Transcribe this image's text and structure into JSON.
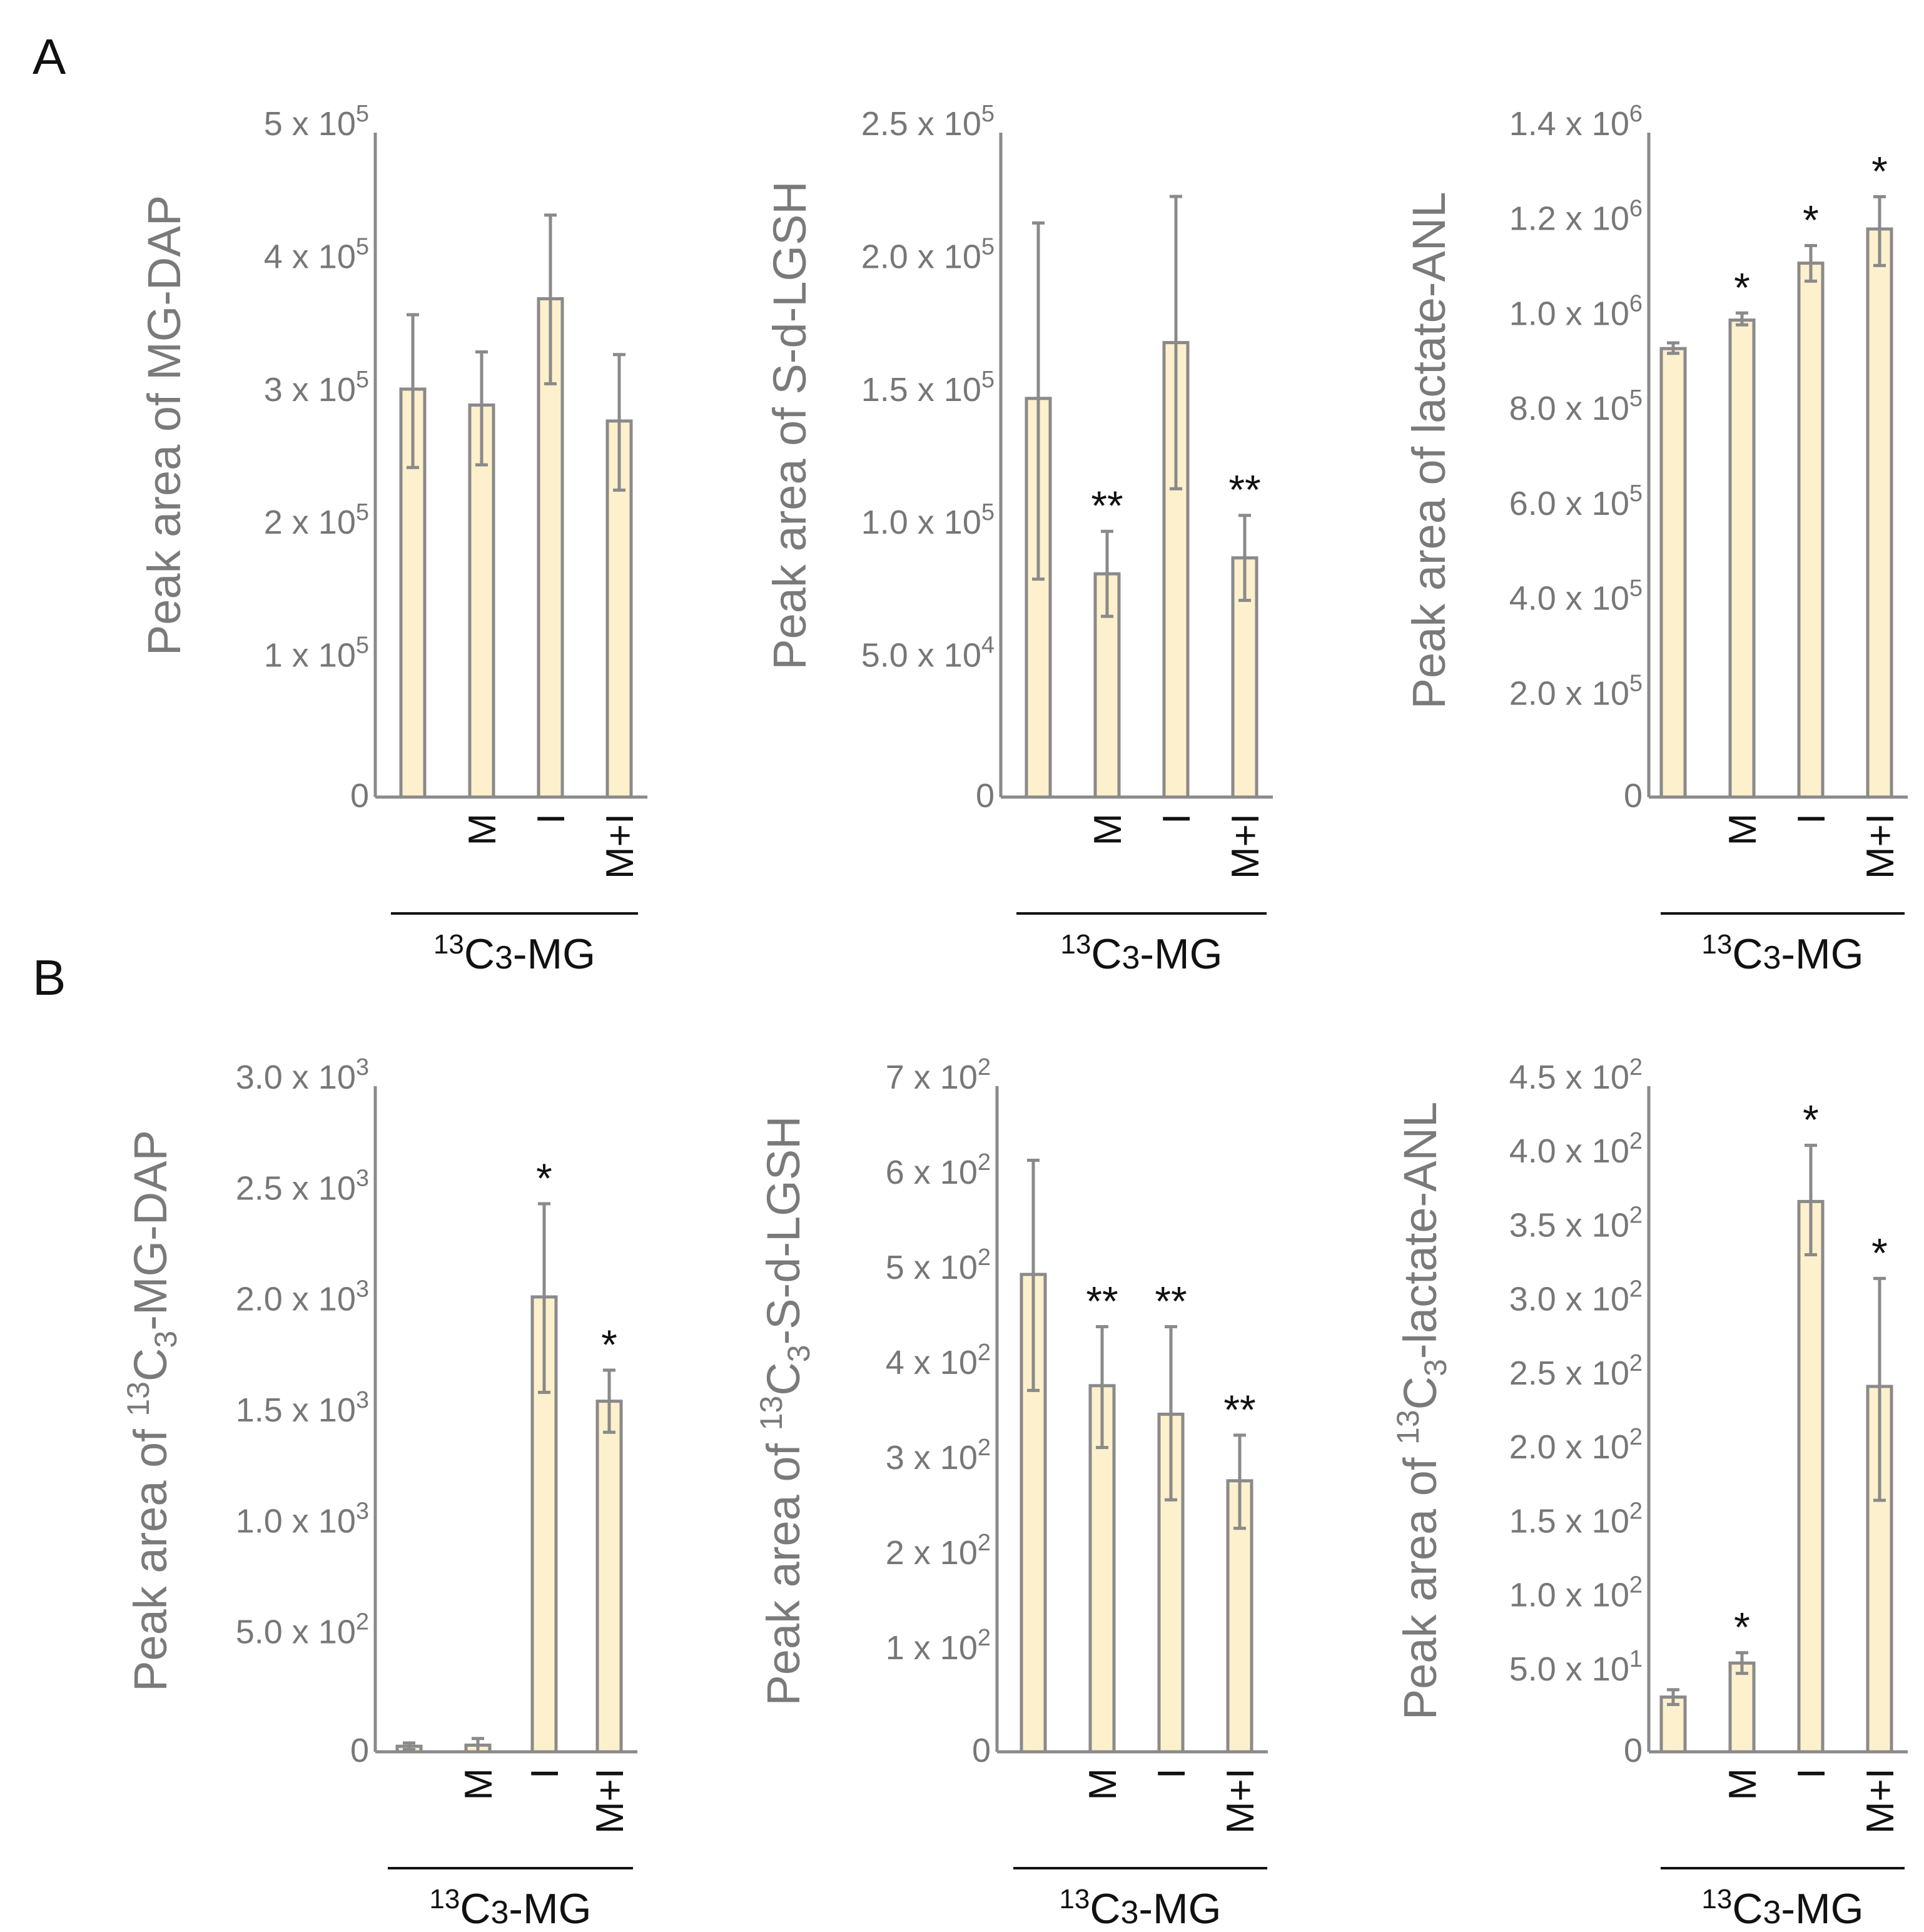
{
  "panel_labels": [
    "A",
    "B"
  ],
  "chart_data": [
    {
      "type": "bar",
      "panel": "A",
      "ylabel": "Peak area of MG-DAP",
      "ylim": [
        0,
        500000
      ],
      "yticks": [
        {
          "value": 0,
          "mant": "0",
          "exp": ""
        },
        {
          "value": 100000,
          "mant": "1 x 10",
          "exp": "5"
        },
        {
          "value": 200000,
          "mant": "2 x 10",
          "exp": "5"
        },
        {
          "value": 300000,
          "mant": "3 x 10",
          "exp": "5"
        },
        {
          "value": 400000,
          "mant": "4 x 10",
          "exp": "5"
        },
        {
          "value": 500000,
          "mant": "5 x 10",
          "exp": "5"
        }
      ],
      "categories": [
        "",
        "M",
        "I",
        "M+I"
      ],
      "values": [
        307000,
        295000,
        375000,
        283000
      ],
      "error_low": [
        248000,
        250000,
        311000,
        231000
      ],
      "error_high": [
        363000,
        335000,
        438000,
        333000
      ],
      "significance": [
        "",
        "",
        "",
        ""
      ],
      "group_label": {
        "iso": "13",
        "elem": "C",
        "sub": "3",
        "rest": "-MG"
      }
    },
    {
      "type": "bar",
      "panel": "A",
      "ylabel": "Peak area of S-d-LGSH",
      "ylim": [
        0,
        250000
      ],
      "yticks": [
        {
          "value": 0,
          "mant": "0",
          "exp": ""
        },
        {
          "value": 50000,
          "mant": "5.0 x 10",
          "exp": "4"
        },
        {
          "value": 100000,
          "mant": "1.0 x 10",
          "exp": "5"
        },
        {
          "value": 150000,
          "mant": "1.5 x 10",
          "exp": "5"
        },
        {
          "value": 200000,
          "mant": "2.0 x 10",
          "exp": "5"
        },
        {
          "value": 250000,
          "mant": "2.5 x 10",
          "exp": "5"
        }
      ],
      "categories": [
        "",
        "M",
        "I",
        "M+I"
      ],
      "values": [
        150000,
        84000,
        171000,
        90000
      ],
      "error_low": [
        82000,
        68000,
        116000,
        74000
      ],
      "error_high": [
        216000,
        100000,
        226000,
        106000
      ],
      "significance": [
        "",
        "**",
        "",
        "**"
      ],
      "group_label": {
        "iso": "13",
        "elem": "C",
        "sub": "3",
        "rest": "-MG"
      }
    },
    {
      "type": "bar",
      "panel": "A",
      "ylabel": "Peak area of lactate-ANL",
      "ylim": [
        0,
        1400000
      ],
      "yticks": [
        {
          "value": 0,
          "mant": "0",
          "exp": ""
        },
        {
          "value": 200000,
          "mant": "2.0 x 10",
          "exp": "5"
        },
        {
          "value": 400000,
          "mant": "4.0 x 10",
          "exp": "5"
        },
        {
          "value": 600000,
          "mant": "6.0 x 10",
          "exp": "5"
        },
        {
          "value": 800000,
          "mant": "8.0 x 10",
          "exp": "5"
        },
        {
          "value": 1000000,
          "mant": "1.0 x 10",
          "exp": "6"
        },
        {
          "value": 1200000,
          "mant": "1.2 x 10",
          "exp": "6"
        },
        {
          "value": 1400000,
          "mant": "1.4 x 10",
          "exp": "6"
        }
      ],
      "categories": [
        "",
        "M",
        "I",
        "M+I"
      ],
      "values": [
        945000,
        1005000,
        1125000,
        1197000
      ],
      "error_low": [
        935000,
        995000,
        1087000,
        1120000
      ],
      "error_high": [
        957000,
        1020000,
        1162000,
        1265000
      ],
      "significance": [
        "",
        "*",
        "*",
        "*"
      ],
      "group_label": {
        "iso": "13",
        "elem": "C",
        "sub": "3",
        "rest": "-MG"
      }
    },
    {
      "type": "bar",
      "panel": "B",
      "ylabel": {
        "pre": "Peak area of ",
        "iso": "13",
        "elem": "C",
        "sub": "3",
        "rest": "-MG-DAP"
      },
      "ylim": [
        0,
        3000
      ],
      "yticks": [
        {
          "value": 0,
          "mant": "0",
          "exp": ""
        },
        {
          "value": 500,
          "mant": "5.0 x 10",
          "exp": "2"
        },
        {
          "value": 1000,
          "mant": "1.0 x 10",
          "exp": "3"
        },
        {
          "value": 1500,
          "mant": "1.5 x 10",
          "exp": "3"
        },
        {
          "value": 2000,
          "mant": "2.0 x 10",
          "exp": "3"
        },
        {
          "value": 2500,
          "mant": "2.5 x 10",
          "exp": "3"
        },
        {
          "value": 3000,
          "mant": "3.0 x 10",
          "exp": "3"
        }
      ],
      "categories": [
        "",
        "M",
        "I",
        "M+I"
      ],
      "values": [
        25,
        30,
        2050,
        1580
      ],
      "error_low": [
        10,
        0,
        1620,
        1440
      ],
      "error_high": [
        40,
        60,
        2470,
        1720
      ],
      "significance": [
        "",
        "",
        "*",
        "*"
      ],
      "group_label": {
        "iso": "13",
        "elem": "C",
        "sub": "3",
        "rest": "-MG"
      }
    },
    {
      "type": "bar",
      "panel": "B",
      "ylabel": {
        "pre": "Peak area of ",
        "iso": "13",
        "elem": "C",
        "sub": "3",
        "rest": "-S-d-LGSH"
      },
      "ylim": [
        0,
        700
      ],
      "yticks": [
        {
          "value": 0,
          "mant": "0",
          "exp": ""
        },
        {
          "value": 100,
          "mant": "1 x 10",
          "exp": "2"
        },
        {
          "value": 200,
          "mant": "2 x 10",
          "exp": "2"
        },
        {
          "value": 300,
          "mant": "3 x 10",
          "exp": "2"
        },
        {
          "value": 400,
          "mant": "4 x 10",
          "exp": "2"
        },
        {
          "value": 500,
          "mant": "5 x 10",
          "exp": "2"
        },
        {
          "value": 600,
          "mant": "6 x 10",
          "exp": "2"
        },
        {
          "value": 700,
          "mant": "7 x 10",
          "exp": "2"
        }
      ],
      "categories": [
        "",
        "M",
        "I",
        "M+I"
      ],
      "values": [
        502,
        385,
        355,
        285
      ],
      "error_low": [
        380,
        320,
        265,
        235
      ],
      "error_high": [
        622,
        447,
        447,
        333
      ],
      "significance": [
        "",
        "**",
        "**",
        "**"
      ],
      "group_label": {
        "iso": "13",
        "elem": "C",
        "sub": "3",
        "rest": "-MG"
      }
    },
    {
      "type": "bar",
      "panel": "B",
      "ylabel": {
        "pre": "Peak area of ",
        "iso": "13",
        "elem": "C",
        "sub": "3",
        "rest": "-lactate-ANL"
      },
      "ylim": [
        0,
        450
      ],
      "yticks": [
        {
          "value": 0,
          "mant": "0",
          "exp": ""
        },
        {
          "value": 50,
          "mant": "5.0 x 10",
          "exp": "1"
        },
        {
          "value": 100,
          "mant": "1.0 x 10",
          "exp": "2"
        },
        {
          "value": 150,
          "mant": "1.5 x 10",
          "exp": "2"
        },
        {
          "value": 200,
          "mant": "2.0 x 10",
          "exp": "2"
        },
        {
          "value": 250,
          "mant": "2.5 x 10",
          "exp": "2"
        },
        {
          "value": 300,
          "mant": "3.0 x 10",
          "exp": "2"
        },
        {
          "value": 350,
          "mant": "3.5 x 10",
          "exp": "2"
        },
        {
          "value": 400,
          "mant": "4.0 x 10",
          "exp": "2"
        },
        {
          "value": 450,
          "mant": "4.5 x 10",
          "exp": "2"
        }
      ],
      "categories": [
        "",
        "M",
        "I",
        "M+I"
      ],
      "values": [
        37,
        60,
        372,
        247
      ],
      "error_low": [
        32,
        53,
        336,
        170
      ],
      "error_high": [
        42,
        67,
        410,
        320
      ],
      "significance": [
        "",
        "*",
        "*",
        "*"
      ],
      "group_label": {
        "iso": "13",
        "elem": "C",
        "sub": "3",
        "rest": "-MG"
      }
    }
  ],
  "colors": {
    "bar_fill": "#fdf0cc",
    "bar_stroke": "#8a8a8a",
    "axis": "#8a8a8a",
    "tick_text": "#777777",
    "label_text": "#7a7a7a",
    "dark_text": "#111111"
  }
}
